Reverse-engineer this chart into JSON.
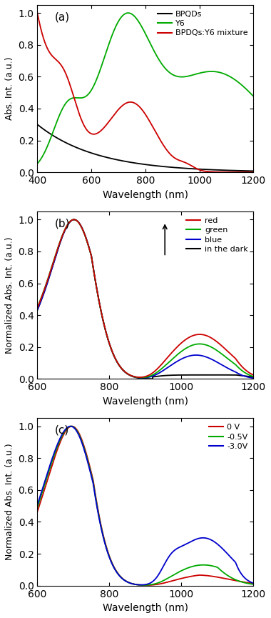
{
  "panel_a": {
    "xlabel": "Wavelength (nm)",
    "ylabel": "Abs. Int. (a.u.)",
    "label": "(a)",
    "xlim": [
      400,
      1200
    ],
    "ylim": [
      0,
      1.05
    ],
    "yticks": [
      0.0,
      0.2,
      0.4,
      0.6,
      0.8,
      1.0
    ],
    "xticks": [
      400,
      600,
      800,
      1000,
      1200
    ],
    "legend": [
      "BPQDs",
      "Y6",
      "BPDQs:Y6 mixture"
    ],
    "colors": [
      "#000000",
      "#00aa00",
      "#cc0000"
    ]
  },
  "panel_b": {
    "xlabel": "Wavelength (nm)",
    "ylabel": "Normalized Abs. Int. (a.u.)",
    "label": "(b)",
    "xlim": [
      600,
      1200
    ],
    "ylim": [
      0,
      1.05
    ],
    "yticks": [
      0.0,
      0.2,
      0.4,
      0.6,
      0.8,
      1.0
    ],
    "xticks": [
      600,
      800,
      1000,
      1200
    ],
    "legend": [
      "red",
      "green",
      "blue",
      "in the dark"
    ],
    "colors": [
      "#cc0000",
      "#00aa00",
      "#0000cc",
      "#000000"
    ]
  },
  "panel_c": {
    "xlabel": "Wavelength (nm)",
    "ylabel": "Normalized Abs. Int. (a.u.)",
    "label": "(c)",
    "xlim": [
      600,
      1200
    ],
    "ylim": [
      0,
      1.05
    ],
    "yticks": [
      0.0,
      0.2,
      0.4,
      0.6,
      0.8,
      1.0
    ],
    "xticks": [
      600,
      800,
      1000,
      1200
    ],
    "legend": [
      "0 V",
      "-0.5V",
      "-3.0V"
    ],
    "colors": [
      "#cc0000",
      "#00aa00",
      "#0000cc"
    ]
  }
}
